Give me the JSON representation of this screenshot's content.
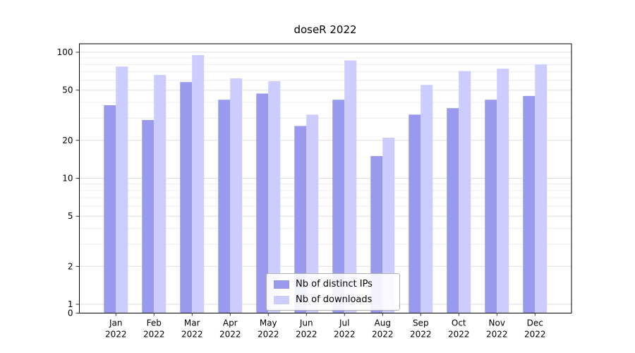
{
  "chart_data": {
    "type": "bar",
    "title": "doseR 2022",
    "year": "2022",
    "categories": [
      "Jan",
      "Feb",
      "Mar",
      "Apr",
      "May",
      "Jun",
      "Jul",
      "Aug",
      "Sep",
      "Oct",
      "Nov",
      "Dec"
    ],
    "series": [
      {
        "name": "Nb of distinct IPs",
        "color": "#9999ee",
        "values": [
          38,
          29,
          58,
          42,
          47,
          26,
          42,
          15,
          32,
          36,
          42,
          45
        ]
      },
      {
        "name": "Nb of downloads",
        "color": "#ccccff",
        "values": [
          77,
          66,
          95,
          62,
          59,
          32,
          86,
          21,
          55,
          71,
          74,
          80
        ]
      }
    ],
    "yticks": [
      0,
      1,
      2,
      5,
      10,
      20,
      50,
      100
    ],
    "yscale": "symlog",
    "ylim": [
      0,
      120
    ],
    "xlabel": "",
    "ylabel": "",
    "grid": "horizontal",
    "legend_position": "lower center"
  }
}
